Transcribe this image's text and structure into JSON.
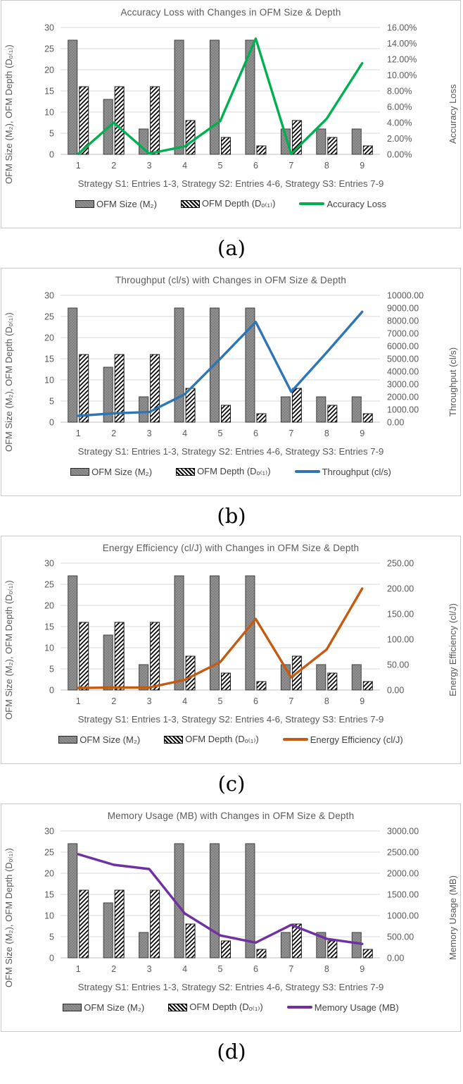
{
  "shared": {
    "xlabel": "Strategy S1: Entries 1-3, Strategy S2: Entries 4-6, Strategy S3: Entries 7-9",
    "categories": [
      "1",
      "2",
      "3",
      "4",
      "5",
      "6",
      "7",
      "8",
      "9"
    ],
    "left_axis_label": "OFM Size (M₂), OFM Depth (Dₒ₍₁₎)"
  },
  "chart_data": [
    {
      "type": "bar+line",
      "title": "Accuracy Loss with Changes in OFM Size & Depth",
      "caption": "(a)",
      "xlabel": "Strategy S1: Entries 1-3, Strategy S2: Entries 4-6, Strategy S3: Entries 7-9",
      "categories": [
        "1",
        "2",
        "3",
        "4",
        "5",
        "6",
        "7",
        "8",
        "9"
      ],
      "left_axis": {
        "label": "OFM Size (M₂), OFM Depth (Dₒ₍₁₎)",
        "min": 0,
        "max": 30,
        "step": 5,
        "ticks": [
          0,
          5,
          10,
          15,
          20,
          25,
          30
        ]
      },
      "right_axis": {
        "label": "Accuracy Loss",
        "min": 0,
        "max": 16,
        "tick_labels": [
          "0.00%",
          "2.00%",
          "4.00%",
          "6.00%",
          "8.00%",
          "10.00%",
          "12.00%",
          "14.00%",
          "16.00%"
        ]
      },
      "series": [
        {
          "name": "OFM Size (M₂)",
          "style": "gray",
          "values": [
            27,
            13,
            6,
            27,
            27,
            27,
            6,
            6,
            6
          ]
        },
        {
          "name": "OFM Depth (Dₒ₍₁₎)",
          "style": "hatch",
          "values": [
            16,
            16,
            16,
            8,
            4,
            2,
            8,
            4,
            2
          ]
        }
      ],
      "line": {
        "name": "Accuracy Loss",
        "color": "#00B050",
        "values": [
          0.05,
          4.0,
          0.1,
          1.0,
          4.2,
          14.6,
          0.05,
          4.5,
          11.5
        ]
      },
      "grid": true,
      "legend_position": "bottom"
    },
    {
      "type": "bar+line",
      "title": "Throughput (cl/s) with Changes in OFM Size & Depth",
      "caption": "(b)",
      "xlabel": "Strategy S1: Entries 1-3, Strategy S2: Entries 4-6, Strategy S3: Entries 7-9",
      "categories": [
        "1",
        "2",
        "3",
        "4",
        "5",
        "6",
        "7",
        "8",
        "9"
      ],
      "left_axis": {
        "label": "OFM Size (M₂), OFM Depth (Dₒ₍₁₎)",
        "min": 0,
        "max": 30,
        "step": 5,
        "ticks": [
          0,
          5,
          10,
          15,
          20,
          25,
          30
        ]
      },
      "right_axis": {
        "label": "Throughput (cl/s)",
        "min": 0,
        "max": 10000,
        "tick_labels": [
          "0.00",
          "1000.00",
          "2000.00",
          "3000.00",
          "4000.00",
          "5000.00",
          "6000.00",
          "7000.00",
          "8000.00",
          "9000.00",
          "10000.00"
        ]
      },
      "series": [
        {
          "name": "OFM Size (M₂)",
          "style": "gray",
          "values": [
            27,
            13,
            6,
            27,
            27,
            27,
            6,
            6,
            6
          ]
        },
        {
          "name": "OFM Depth (Dₒ₍₁₎)",
          "style": "hatch",
          "values": [
            16,
            16,
            16,
            8,
            4,
            2,
            8,
            4,
            2
          ]
        }
      ],
      "line": {
        "name": "Throughput (cl/s)",
        "color": "#2E75B6",
        "values": [
          500,
          700,
          800,
          2200,
          5000,
          7900,
          2400,
          5500,
          8700
        ]
      },
      "grid": true,
      "legend_position": "bottom"
    },
    {
      "type": "bar+line",
      "title": "Energy Efficiency (cl/J) with Changes in OFM Size & Depth",
      "caption": "(c)",
      "xlabel": "Strategy S1: Entries 1-3, Strategy S2: Entries 4-6, Strategy S3: Entries 7-9",
      "categories": [
        "1",
        "2",
        "3",
        "4",
        "5",
        "6",
        "7",
        "8",
        "9"
      ],
      "left_axis": {
        "label": "OFM Size (M₂), OFM Depth (Dₒ₍₁₎)",
        "min": 0,
        "max": 30,
        "step": 5,
        "ticks": [
          0,
          5,
          10,
          15,
          20,
          25,
          30
        ]
      },
      "right_axis": {
        "label": "Energy Efficiency (cl/J)",
        "min": 0,
        "max": 250,
        "tick_labels": [
          "0.00",
          "50.00",
          "100.00",
          "150.00",
          "200.00",
          "250.00"
        ]
      },
      "series": [
        {
          "name": "OFM Size (M₂)",
          "style": "gray",
          "values": [
            27,
            13,
            6,
            27,
            27,
            27,
            6,
            6,
            6
          ]
        },
        {
          "name": "OFM Depth (Dₒ₍₁₎)",
          "style": "hatch",
          "values": [
            16,
            16,
            16,
            8,
            4,
            2,
            8,
            4,
            2
          ]
        }
      ],
      "line": {
        "name": "Energy Efficiency (cl/J)",
        "color": "#C55A11",
        "values": [
          4,
          5,
          5,
          20,
          55,
          140,
          25,
          80,
          200
        ]
      },
      "grid": true,
      "legend_position": "bottom"
    },
    {
      "type": "bar+line",
      "title": "Memory Usage (MB) with Changes in OFM Size & Depth",
      "caption": "(d)",
      "xlabel": "Strategy S1: Entries 1-3, Strategy S2: Entries 4-6, Strategy S3: Entries 7-9",
      "categories": [
        "1",
        "2",
        "3",
        "4",
        "5",
        "6",
        "7",
        "8",
        "9"
      ],
      "left_axis": {
        "label": "OFM Size (M₂), OFM Depth (Dₒ₍₁₎)",
        "min": 0,
        "max": 30,
        "step": 5,
        "ticks": [
          0,
          5,
          10,
          15,
          20,
          25,
          30
        ]
      },
      "right_axis": {
        "label": "Memory Usage (MB)",
        "min": 0,
        "max": 3000,
        "tick_labels": [
          "0.00",
          "500.00",
          "1000.00",
          "1500.00",
          "2000.00",
          "2500.00",
          "3000.00"
        ]
      },
      "series": [
        {
          "name": "OFM Size (M₂)",
          "style": "gray",
          "values": [
            27,
            13,
            6,
            27,
            27,
            27,
            6,
            6,
            6
          ]
        },
        {
          "name": "OFM Depth (Dₒ₍₁₎)",
          "style": "hatch",
          "values": [
            16,
            16,
            16,
            8,
            4,
            2,
            8,
            4,
            2
          ]
        }
      ],
      "line": {
        "name": "Memory Usage (MB)",
        "color": "#7030A0",
        "values": [
          2450,
          2200,
          2100,
          1050,
          530,
          360,
          780,
          450,
          330
        ]
      },
      "grid": true,
      "legend_position": "bottom"
    }
  ],
  "colors": {
    "bar_gray": "#8f8f8f",
    "bar_outline": "#3f3f3f",
    "gridline": "#d9d9d9",
    "axis_text": "#595959",
    "accuracy_loss_line": "#00B050",
    "throughput_line": "#2E75B6",
    "energy_efficiency_line": "#C55A11",
    "memory_usage_line": "#7030A0"
  }
}
